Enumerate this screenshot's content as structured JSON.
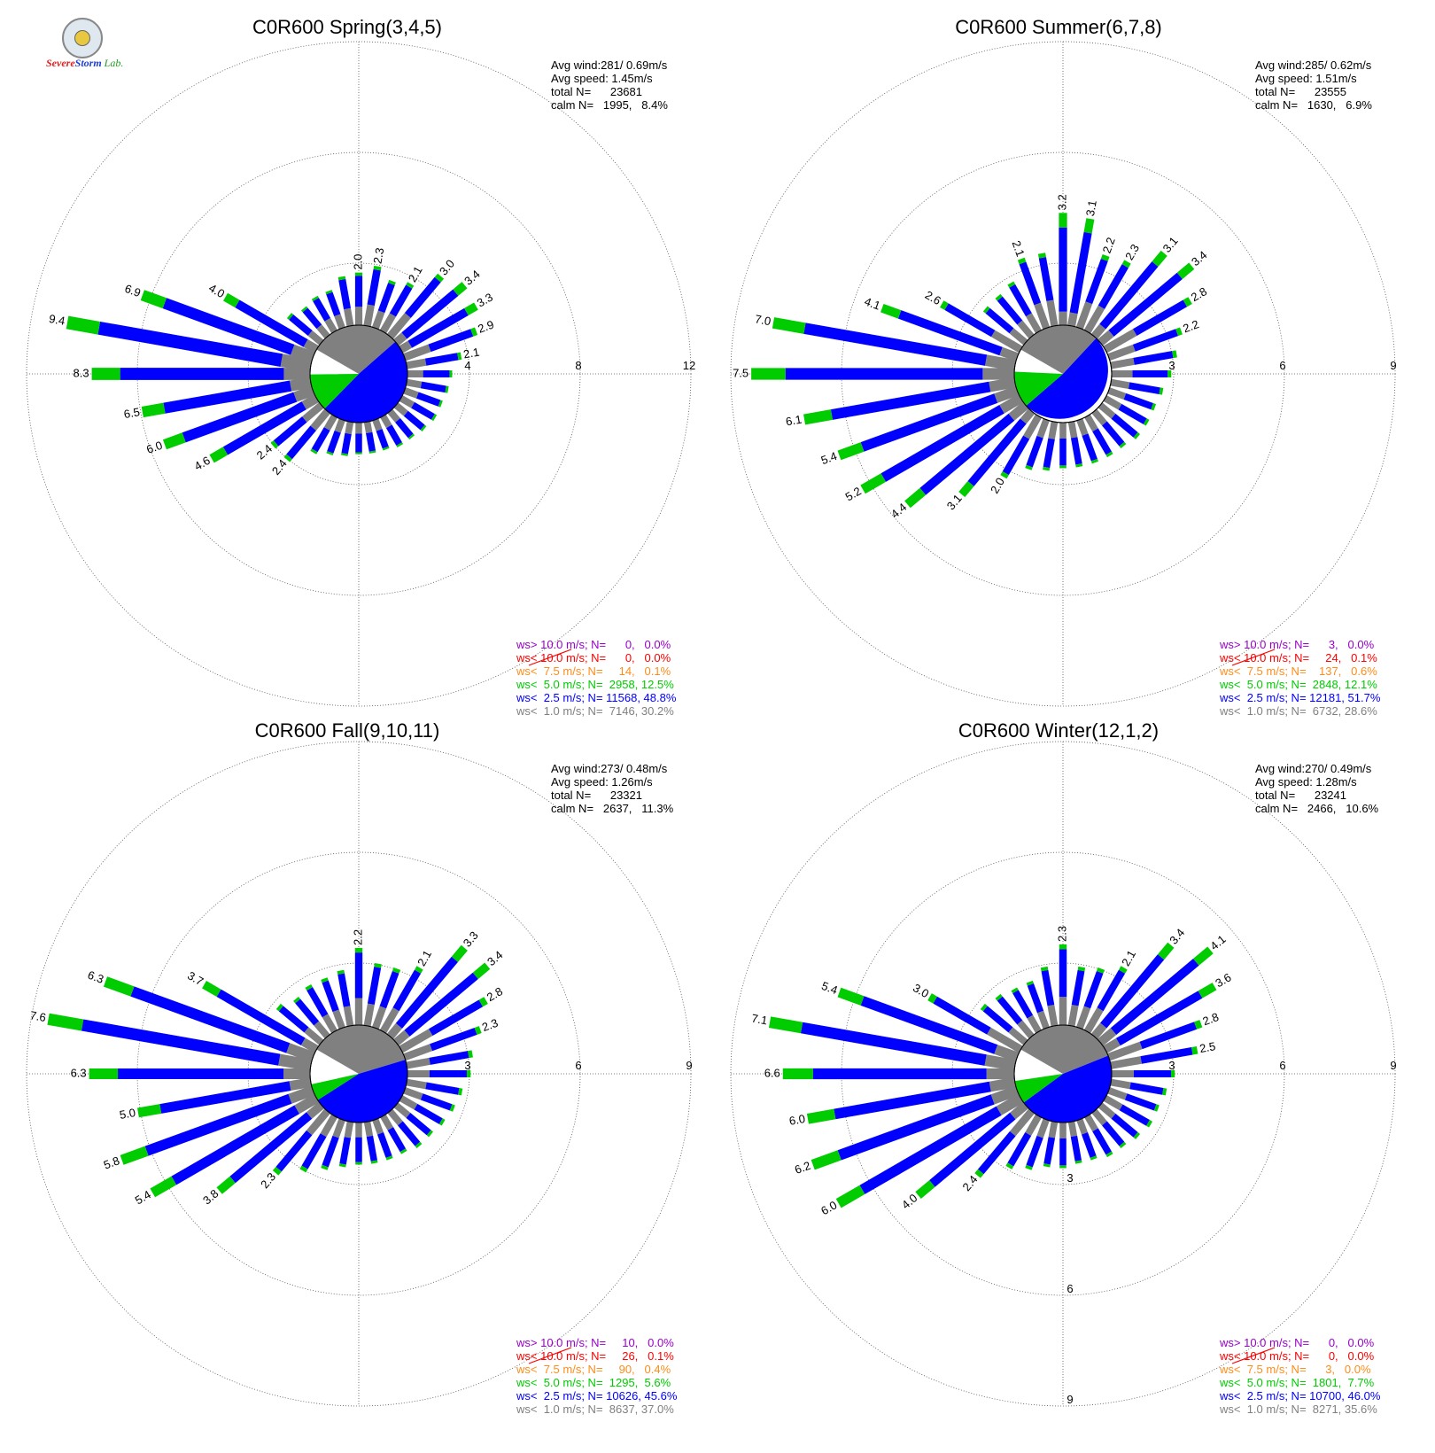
{
  "logo": {
    "text_a": "Severe",
    "text_b": "Storm",
    "text_c": "Lab."
  },
  "colors": {
    "calm": "#808080",
    "lt1": "#808080",
    "lt2_5": "#0000ff",
    "lt5": "#00cc00",
    "lt7_5": "#ff8c1a",
    "lt10": "#ff0000",
    "gt10": "#9900cc"
  },
  "chart_data": [
    {
      "type": "wind-rose",
      "title": "C0R600 Spring(3,4,5)",
      "stats": [
        "Avg wind:281/ 0.69m/s",
        "Avg speed: 1.45m/s",
        "total N=      23681",
        "calm N=   1995,   8.4%"
      ],
      "ring_labels": [
        "4",
        "8",
        "12"
      ],
      "rmax": 12,
      "calm_percent": 8.4,
      "calm_pie": [
        {
          "class": "calm",
          "percent": 30.2
        },
        {
          "class": "lt2_5",
          "percent": 48.8
        },
        {
          "class": "lt5",
          "percent": 12.5
        }
      ],
      "directions": [
        0,
        10,
        20,
        30,
        40,
        50,
        60,
        70,
        80,
        90,
        100,
        110,
        120,
        130,
        140,
        150,
        160,
        170,
        180,
        190,
        200,
        210,
        220,
        230,
        240,
        250,
        260,
        270,
        280,
        290,
        300,
        310,
        320,
        330,
        340,
        350
      ],
      "totals": [
        2.0,
        2.3,
        1.9,
        2.1,
        3.0,
        3.4,
        3.3,
        2.9,
        2.1,
        1.7,
        1.6,
        1.5,
        1.5,
        1.4,
        1.3,
        1.3,
        1.2,
        1.2,
        1.2,
        1.3,
        1.4,
        1.6,
        2.4,
        2.4,
        4.6,
        6.0,
        6.5,
        8.3,
        9.4,
        6.9,
        4.0,
        1.6,
        1.4,
        1.5,
        1.5,
        1.9
      ],
      "labeled": [
        {
          "dir": 0,
          "text": "2.0"
        },
        {
          "dir": 10,
          "text": "2.3"
        },
        {
          "dir": 30,
          "text": "2.1"
        },
        {
          "dir": 40,
          "text": "3.0"
        },
        {
          "dir": 50,
          "text": "3.4"
        },
        {
          "dir": 60,
          "text": "3.3"
        },
        {
          "dir": 70,
          "text": "2.9"
        },
        {
          "dir": 80,
          "text": "2.1"
        },
        {
          "dir": 220,
          "text": "2.4"
        },
        {
          "dir": 230,
          "text": "2.4"
        },
        {
          "dir": 240,
          "text": "4.6"
        },
        {
          "dir": 250,
          "text": "6.0"
        },
        {
          "dir": 260,
          "text": "6.5"
        },
        {
          "dir": 270,
          "text": "8.3"
        },
        {
          "dir": 280,
          "text": "9.4"
        },
        {
          "dir": 290,
          "text": "6.9"
        },
        {
          "dir": 300,
          "text": "4.0"
        }
      ],
      "legend": [
        {
          "class": "gt10",
          "text": "ws> 10.0 m/s; N=      0,   0.0%"
        },
        {
          "class": "lt10",
          "text": "ws< 10.0 m/s; N=      0,   0.0%"
        },
        {
          "class": "lt7_5",
          "text": "ws<  7.5 m/s; N=     14,   0.1%"
        },
        {
          "class": "lt5",
          "text": "ws<  5.0 m/s; N=  2958, 12.5%"
        },
        {
          "class": "lt2_5",
          "text": "ws<  2.5 m/s; N= 11568, 48.8%"
        },
        {
          "class": "lt1",
          "text": "ws<  1.0 m/s; N=  7146, 30.2%"
        }
      ]
    },
    {
      "type": "wind-rose",
      "title": "C0R600 Summer(6,7,8)",
      "stats": [
        "Avg wind:285/ 0.62m/s",
        "Avg speed: 1.51m/s",
        "total N=      23555",
        "calm N=   1630,   6.9%"
      ],
      "ring_labels": [
        "3",
        "6",
        "9"
      ],
      "rmax": 9,
      "calm_percent": 6.9,
      "calm_pie": [
        {
          "class": "calm",
          "percent": 28.6
        },
        {
          "class": "lt2_5",
          "percent": 51.7
        },
        {
          "class": "lt5",
          "percent": 12.1
        }
      ],
      "directions": [
        0,
        10,
        20,
        30,
        40,
        50,
        60,
        70,
        80,
        90,
        100,
        110,
        120,
        130,
        140,
        150,
        160,
        170,
        180,
        190,
        200,
        210,
        220,
        230,
        240,
        250,
        260,
        270,
        280,
        290,
        300,
        310,
        320,
        330,
        340,
        350
      ],
      "totals": [
        3.2,
        3.1,
        2.2,
        2.3,
        3.1,
        3.4,
        2.8,
        2.2,
        1.9,
        1.7,
        1.5,
        1.4,
        1.4,
        1.4,
        1.3,
        1.3,
        1.3,
        1.3,
        1.3,
        1.4,
        1.5,
        2.0,
        3.1,
        4.4,
        5.2,
        5.4,
        6.1,
        7.5,
        7.0,
        4.1,
        2.6,
        1.5,
        1.5,
        1.6,
        2.1,
        2.1
      ],
      "labeled": [
        {
          "dir": 0,
          "text": "3.2"
        },
        {
          "dir": 10,
          "text": "3.1"
        },
        {
          "dir": 20,
          "text": "2.2"
        },
        {
          "dir": 30,
          "text": "2.3"
        },
        {
          "dir": 40,
          "text": "3.1"
        },
        {
          "dir": 50,
          "text": "3.4"
        },
        {
          "dir": 60,
          "text": "2.8"
        },
        {
          "dir": 70,
          "text": "2.2"
        },
        {
          "dir": 210,
          "text": "2.0"
        },
        {
          "dir": 220,
          "text": "3.1"
        },
        {
          "dir": 230,
          "text": "4.4"
        },
        {
          "dir": 240,
          "text": "5.2"
        },
        {
          "dir": 250,
          "text": "5.4"
        },
        {
          "dir": 260,
          "text": "6.1"
        },
        {
          "dir": 270,
          "text": "7.5"
        },
        {
          "dir": 280,
          "text": "7.0"
        },
        {
          "dir": 290,
          "text": "4.1"
        },
        {
          "dir": 300,
          "text": "2.6"
        },
        {
          "dir": 340,
          "text": "2.1"
        }
      ],
      "legend": [
        {
          "class": "gt10",
          "text": "ws> 10.0 m/s; N=      3,   0.0%"
        },
        {
          "class": "lt10",
          "text": "ws< 10.0 m/s; N=     24,   0.1%"
        },
        {
          "class": "lt7_5",
          "text": "ws<  7.5 m/s; N=    137,   0.6%"
        },
        {
          "class": "lt5",
          "text": "ws<  5.0 m/s; N=  2848, 12.1%"
        },
        {
          "class": "lt2_5",
          "text": "ws<  2.5 m/s; N= 12181, 51.7%"
        },
        {
          "class": "lt1",
          "text": "ws<  1.0 m/s; N=  6732, 28.6%"
        }
      ]
    },
    {
      "type": "wind-rose",
      "title": "C0R600 Fall(9,10,11)",
      "stats": [
        "Avg wind:273/ 0.48m/s",
        "Avg speed: 1.26m/s",
        "total N=      23321",
        "calm N=   2637,   11.3%"
      ],
      "ring_labels": [
        "3",
        "6",
        "9"
      ],
      "rmax": 9,
      "calm_percent": 11.3,
      "calm_pie": [
        {
          "class": "calm",
          "percent": 37.0
        },
        {
          "class": "lt2_5",
          "percent": 45.6
        },
        {
          "class": "lt5",
          "percent": 5.6
        }
      ],
      "directions": [
        0,
        10,
        20,
        30,
        40,
        50,
        60,
        70,
        80,
        90,
        100,
        110,
        120,
        130,
        140,
        150,
        160,
        170,
        180,
        190,
        200,
        210,
        220,
        230,
        240,
        250,
        260,
        270,
        280,
        290,
        300,
        310,
        320,
        330,
        340,
        350
      ],
      "totals": [
        2.2,
        1.8,
        1.8,
        2.1,
        3.3,
        3.4,
        2.8,
        2.3,
        1.9,
        1.8,
        1.6,
        1.5,
        1.4,
        1.3,
        1.3,
        1.2,
        1.2,
        1.2,
        1.2,
        1.3,
        1.5,
        1.8,
        2.3,
        3.8,
        5.4,
        5.8,
        5.0,
        6.3,
        7.6,
        6.3,
        3.7,
        1.6,
        1.4,
        1.5,
        1.5,
        1.6
      ],
      "labeled": [
        {
          "dir": 0,
          "text": "2.2"
        },
        {
          "dir": 30,
          "text": "2.1"
        },
        {
          "dir": 40,
          "text": "3.3"
        },
        {
          "dir": 50,
          "text": "3.4"
        },
        {
          "dir": 60,
          "text": "2.8"
        },
        {
          "dir": 70,
          "text": "2.3"
        },
        {
          "dir": 220,
          "text": "2.3"
        },
        {
          "dir": 230,
          "text": "3.8"
        },
        {
          "dir": 240,
          "text": "5.4"
        },
        {
          "dir": 250,
          "text": "5.8"
        },
        {
          "dir": 260,
          "text": "5.0"
        },
        {
          "dir": 270,
          "text": "6.3"
        },
        {
          "dir": 280,
          "text": "7.6"
        },
        {
          "dir": 290,
          "text": "6.3"
        },
        {
          "dir": 300,
          "text": "3.7"
        }
      ],
      "legend": [
        {
          "class": "gt10",
          "text": "ws> 10.0 m/s; N=     10,   0.0%"
        },
        {
          "class": "lt10",
          "text": "ws< 10.0 m/s; N=     26,   0.1%"
        },
        {
          "class": "lt7_5",
          "text": "ws<  7.5 m/s; N=     90,   0.4%"
        },
        {
          "class": "lt5",
          "text": "ws<  5.0 m/s; N=  1295,  5.6%"
        },
        {
          "class": "lt2_5",
          "text": "ws<  2.5 m/s; N= 10626, 45.6%"
        },
        {
          "class": "lt1",
          "text": "ws<  1.0 m/s; N=  8637, 37.0%"
        }
      ]
    },
    {
      "type": "wind-rose",
      "title": "C0R600 Winter(12,1,2)",
      "stats": [
        "Avg wind:270/ 0.49m/s",
        "Avg speed: 1.28m/s",
        "total N=      23241",
        "calm N=   2466,   10.6%"
      ],
      "ring_labels": [
        "3",
        "6",
        "9"
      ],
      "rmax": 9,
      "calm_percent": 10.6,
      "calm_pie": [
        {
          "class": "calm",
          "percent": 35.6
        },
        {
          "class": "lt2_5",
          "percent": 46.0
        },
        {
          "class": "lt5",
          "percent": 7.7
        }
      ],
      "directions": [
        0,
        10,
        20,
        30,
        40,
        50,
        60,
        70,
        80,
        90,
        100,
        110,
        120,
        130,
        140,
        150,
        160,
        170,
        180,
        190,
        200,
        210,
        220,
        230,
        240,
        250,
        260,
        270,
        280,
        290,
        300,
        310,
        320,
        330,
        340,
        350
      ],
      "totals": [
        2.3,
        1.7,
        1.8,
        2.1,
        3.4,
        4.1,
        3.6,
        2.8,
        2.5,
        1.8,
        1.6,
        1.5,
        1.5,
        1.4,
        1.3,
        1.3,
        1.2,
        1.2,
        1.3,
        1.3,
        1.5,
        1.7,
        2.4,
        4.0,
        6.0,
        6.2,
        6.0,
        6.6,
        7.1,
        5.4,
        3.0,
        1.6,
        1.5,
        1.4,
        1.4,
        1.7
      ],
      "labeled": [
        {
          "dir": 0,
          "text": "2.3"
        },
        {
          "dir": 30,
          "text": "2.1"
        },
        {
          "dir": 40,
          "text": "3.4"
        },
        {
          "dir": 50,
          "text": "4.1"
        },
        {
          "dir": 60,
          "text": "3.6"
        },
        {
          "dir": 70,
          "text": "2.8"
        },
        {
          "dir": 80,
          "text": "2.5"
        },
        {
          "dir": 220,
          "text": "2.4"
        },
        {
          "dir": 230,
          "text": "4.0"
        },
        {
          "dir": 240,
          "text": "6.0"
        },
        {
          "dir": 250,
          "text": "6.2"
        },
        {
          "dir": 260,
          "text": "6.0"
        },
        {
          "dir": 270,
          "text": "6.6"
        },
        {
          "dir": 280,
          "text": "7.1"
        },
        {
          "dir": 290,
          "text": "5.4"
        },
        {
          "dir": 300,
          "text": "3.0"
        }
      ],
      "south_labels": [
        "3",
        "6",
        "9"
      ],
      "legend": [
        {
          "class": "gt10",
          "text": "ws> 10.0 m/s; N=      0,   0.0%"
        },
        {
          "class": "lt10",
          "text": "ws< 10.0 m/s; N=      0,   0.0%"
        },
        {
          "class": "lt7_5",
          "text": "ws<  7.5 m/s; N=      3,   0.0%"
        },
        {
          "class": "lt5",
          "text": "ws<  5.0 m/s; N=  1801,  7.7%"
        },
        {
          "class": "lt2_5",
          "text": "ws<  2.5 m/s; N= 10700, 46.0%"
        },
        {
          "class": "lt1",
          "text": "ws<  1.0 m/s; N=  8271, 35.6%"
        }
      ]
    }
  ]
}
